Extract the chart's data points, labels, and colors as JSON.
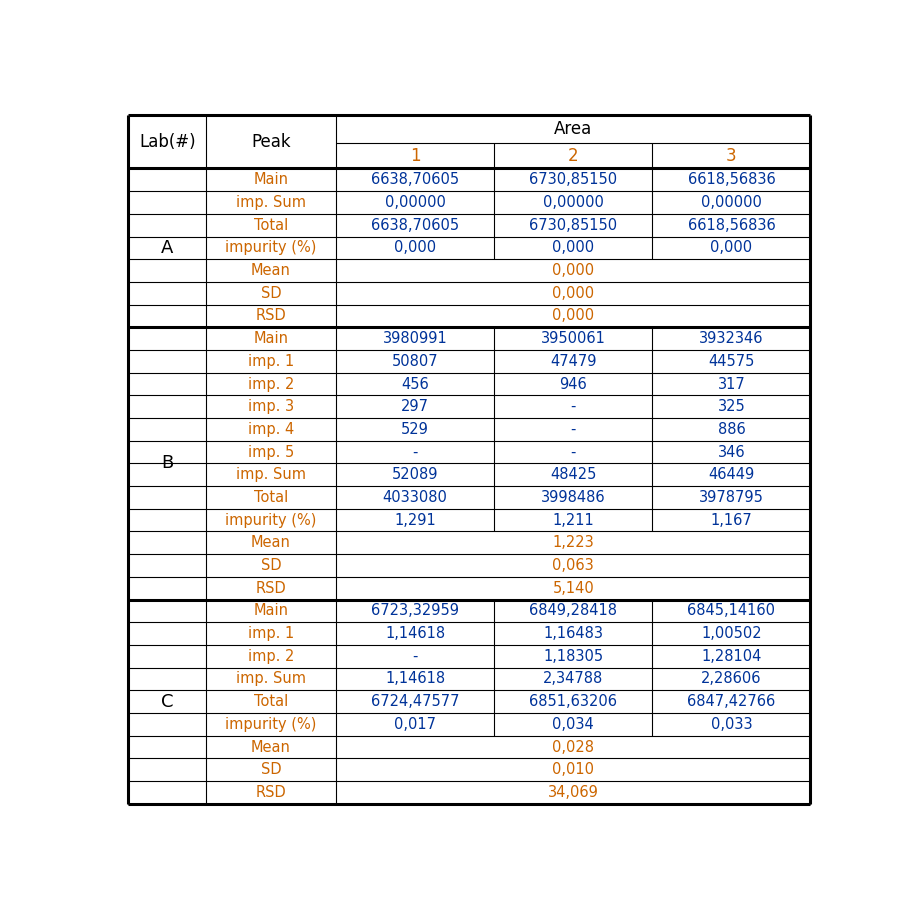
{
  "orange": "#cc6600",
  "blue": "#003399",
  "black": "#000000",
  "white": "#ffffff",
  "section_A": {
    "lab": "A",
    "rows": [
      {
        "peak": "Main",
        "c1": "6638,70605",
        "c2": "6730,85150",
        "c3": "6618,56836",
        "pc": "orange",
        "vc": "blue",
        "span": false
      },
      {
        "peak": "imp. Sum",
        "c1": "0,00000",
        "c2": "0,00000",
        "c3": "0,00000",
        "pc": "orange",
        "vc": "blue",
        "span": false
      },
      {
        "peak": "Total",
        "c1": "6638,70605",
        "c2": "6730,85150",
        "c3": "6618,56836",
        "pc": "orange",
        "vc": "blue",
        "span": false
      },
      {
        "peak": "impurity (%)",
        "c1": "0,000",
        "c2": "0,000",
        "c3": "0,000",
        "pc": "orange",
        "vc": "blue",
        "span": false
      },
      {
        "peak": "Mean",
        "c1": "",
        "c2": "0,000",
        "c3": "",
        "pc": "orange",
        "vc": "orange",
        "span": true
      },
      {
        "peak": "SD",
        "c1": "",
        "c2": "0,000",
        "c3": "",
        "pc": "orange",
        "vc": "orange",
        "span": true
      },
      {
        "peak": "RSD",
        "c1": "",
        "c2": "0,000",
        "c3": "",
        "pc": "orange",
        "vc": "orange",
        "span": true
      }
    ]
  },
  "section_B": {
    "lab": "B",
    "rows": [
      {
        "peak": "Main",
        "c1": "3980991",
        "c2": "3950061",
        "c3": "3932346",
        "pc": "orange",
        "vc": "blue",
        "span": false
      },
      {
        "peak": "imp. 1",
        "c1": "50807",
        "c2": "47479",
        "c3": "44575",
        "pc": "orange",
        "vc": "blue",
        "span": false
      },
      {
        "peak": "imp. 2",
        "c1": "456",
        "c2": "946",
        "c3": "317",
        "pc": "orange",
        "vc": "blue",
        "span": false
      },
      {
        "peak": "imp. 3",
        "c1": "297",
        "c2": "-",
        "c3": "325",
        "pc": "orange",
        "vc": "blue",
        "span": false
      },
      {
        "peak": "imp. 4",
        "c1": "529",
        "c2": "-",
        "c3": "886",
        "pc": "orange",
        "vc": "blue",
        "span": false
      },
      {
        "peak": "imp. 5",
        "c1": "-",
        "c2": "-",
        "c3": "346",
        "pc": "orange",
        "vc": "blue",
        "span": false
      },
      {
        "peak": "imp. Sum",
        "c1": "52089",
        "c2": "48425",
        "c3": "46449",
        "pc": "orange",
        "vc": "blue",
        "span": false
      },
      {
        "peak": "Total",
        "c1": "4033080",
        "c2": "3998486",
        "c3": "3978795",
        "pc": "orange",
        "vc": "blue",
        "span": false
      },
      {
        "peak": "impurity (%)",
        "c1": "1,291",
        "c2": "1,211",
        "c3": "1,167",
        "pc": "orange",
        "vc": "blue",
        "span": false
      },
      {
        "peak": "Mean",
        "c1": "",
        "c2": "1,223",
        "c3": "",
        "pc": "orange",
        "vc": "orange",
        "span": true
      },
      {
        "peak": "SD",
        "c1": "",
        "c2": "0,063",
        "c3": "",
        "pc": "orange",
        "vc": "orange",
        "span": true
      },
      {
        "peak": "RSD",
        "c1": "",
        "c2": "5,140",
        "c3": "",
        "pc": "orange",
        "vc": "orange",
        "span": true
      }
    ]
  },
  "section_C": {
    "lab": "C",
    "rows": [
      {
        "peak": "Main",
        "c1": "6723,32959",
        "c2": "6849,28418",
        "c3": "6845,14160",
        "pc": "orange",
        "vc": "blue",
        "span": false
      },
      {
        "peak": "imp. 1",
        "c1": "1,14618",
        "c2": "1,16483",
        "c3": "1,00502",
        "pc": "orange",
        "vc": "blue",
        "span": false
      },
      {
        "peak": "imp. 2",
        "c1": "-",
        "c2": "1,18305",
        "c3": "1,28104",
        "pc": "orange",
        "vc": "blue",
        "span": false
      },
      {
        "peak": "imp. Sum",
        "c1": "1,14618",
        "c2": "2,34788",
        "c3": "2,28606",
        "pc": "orange",
        "vc": "blue",
        "span": false
      },
      {
        "peak": "Total",
        "c1": "6724,47577",
        "c2": "6851,63206",
        "c3": "6847,42766",
        "pc": "orange",
        "vc": "blue",
        "span": false
      },
      {
        "peak": "impurity (%)",
        "c1": "0,017",
        "c2": "0,034",
        "c3": "0,033",
        "pc": "orange",
        "vc": "blue",
        "span": false
      },
      {
        "peak": "Mean",
        "c1": "",
        "c2": "0,028",
        "c3": "",
        "pc": "orange",
        "vc": "orange",
        "span": true
      },
      {
        "peak": "SD",
        "c1": "",
        "c2": "0,010",
        "c3": "",
        "pc": "orange",
        "vc": "orange",
        "span": true
      },
      {
        "peak": "RSD",
        "c1": "",
        "c2": "34,069",
        "c3": "",
        "pc": "orange",
        "vc": "orange",
        "span": true
      }
    ]
  }
}
